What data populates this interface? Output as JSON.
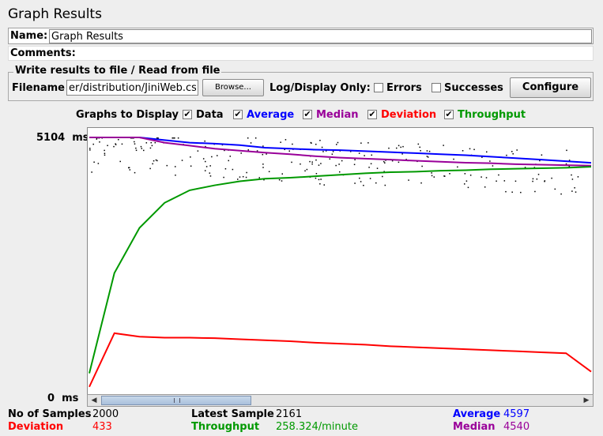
{
  "title": "Graph Results",
  "name_label": "Name:",
  "name_value": "Graph Results",
  "comments_label": "Comments:",
  "comments_value": "",
  "write_results": {
    "legend": "Write results to file / Read from file",
    "filename_label": "Filename",
    "filename_value": "er/distribution/JiniWeb.csv",
    "browse_label": "Browse...",
    "log_display_label": "Log/Display Only:",
    "errors_label": "Errors",
    "errors_checked": false,
    "successes_label": "Successes",
    "successes_checked": false,
    "configure_label": "Configure"
  },
  "graphs_to_display": {
    "label": "Graphs to Display",
    "check_mark": "✔",
    "options": [
      {
        "label": "Data",
        "color": "#000000",
        "checked": true
      },
      {
        "label": "Average",
        "color": "#0000ff",
        "checked": true
      },
      {
        "label": "Median",
        "color": "#990099",
        "checked": true
      },
      {
        "label": "Deviation",
        "color": "#ff0000",
        "checked": true
      },
      {
        "label": "Throughput",
        "color": "#009900",
        "checked": true
      }
    ]
  },
  "chart_data": {
    "type": "line",
    "y_max_label": "5104  ms",
    "y_min_label": "0  ms",
    "ylim": [
      0,
      5104
    ],
    "x": [
      0,
      100,
      200,
      300,
      400,
      500,
      600,
      700,
      800,
      900,
      1000,
      1100,
      1200,
      1300,
      1400,
      1500,
      1600,
      1700,
      1800,
      1900,
      2000
    ],
    "series": [
      {
        "name": "Average",
        "color": "#0000ff",
        "values": [
          5104,
          5104,
          5104,
          5050,
          5000,
          4980,
          4950,
          4900,
          4880,
          4860,
          4850,
          4830,
          4810,
          4790,
          4770,
          4750,
          4720,
          4690,
          4660,
          4630,
          4597
        ]
      },
      {
        "name": "Median",
        "color": "#990099",
        "values": [
          5104,
          5104,
          5104,
          5000,
          4940,
          4880,
          4840,
          4800,
          4770,
          4730,
          4700,
          4680,
          4660,
          4640,
          4620,
          4600,
          4590,
          4570,
          4560,
          4550,
          4540
        ]
      },
      {
        "name": "Deviation",
        "color": "#ff0000",
        "values": [
          130,
          1200,
          1130,
          1110,
          1110,
          1100,
          1080,
          1060,
          1040,
          1010,
          990,
          970,
          940,
          920,
          900,
          880,
          860,
          840,
          820,
          800,
          433
        ]
      },
      {
        "name": "Throughput",
        "color": "#009900",
        "values": [
          400,
          2400,
          3300,
          3800,
          4050,
          4150,
          4230,
          4280,
          4300,
          4330,
          4360,
          4390,
          4410,
          4420,
          4440,
          4450,
          4470,
          4480,
          4490,
          4500,
          4520
        ]
      }
    ]
  },
  "stats": {
    "samples_label": "No of Samples",
    "samples_value": "2000",
    "latest_label": "Latest Sample",
    "latest_value": "2161",
    "average_label": "Average",
    "average_value": "4597",
    "deviation_label": "Deviation",
    "deviation_value": "433",
    "throughput_label": "Throughput",
    "throughput_value": "258.324/minute",
    "median_label": "Median",
    "median_value": "4540"
  },
  "colors": {
    "average": "#0000ff",
    "median": "#990099",
    "deviation": "#ff0000",
    "throughput": "#009900"
  }
}
